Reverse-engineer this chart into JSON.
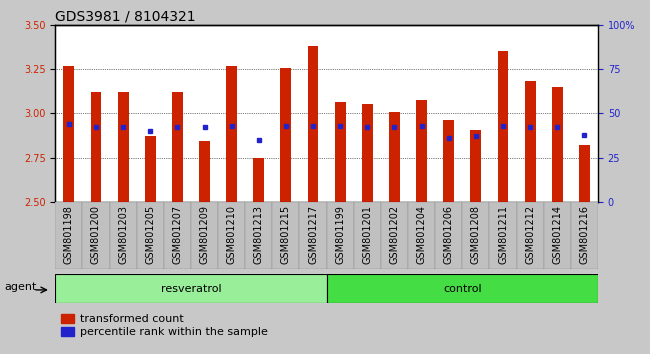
{
  "title": "GDS3981 / 8104321",
  "samples": [
    "GSM801198",
    "GSM801200",
    "GSM801203",
    "GSM801205",
    "GSM801207",
    "GSM801209",
    "GSM801210",
    "GSM801213",
    "GSM801215",
    "GSM801217",
    "GSM801199",
    "GSM801201",
    "GSM801202",
    "GSM801204",
    "GSM801206",
    "GSM801208",
    "GSM801211",
    "GSM801212",
    "GSM801214",
    "GSM801216"
  ],
  "transformed_count": [
    3.265,
    3.12,
    3.12,
    2.87,
    3.12,
    2.845,
    3.265,
    2.745,
    3.255,
    3.38,
    3.065,
    3.055,
    3.01,
    3.075,
    2.96,
    2.905,
    3.35,
    3.185,
    3.15,
    2.82
  ],
  "percentile_rank": [
    44,
    42,
    42,
    40,
    42,
    42,
    43,
    35,
    43,
    43,
    43,
    42,
    42,
    43,
    36,
    37,
    43,
    42,
    42,
    38
  ],
  "ylim_left": [
    2.5,
    3.5
  ],
  "ylim_right": [
    0,
    100
  ],
  "yticks_left": [
    2.5,
    2.75,
    3.0,
    3.25,
    3.5
  ],
  "yticks_right": [
    0,
    25,
    50,
    75,
    100
  ],
  "ytick_right_labels": [
    "0",
    "25",
    "50",
    "75",
    "100%"
  ],
  "bar_color": "#CC2200",
  "marker_color": "#2222CC",
  "fig_bg_color": "#C8C8C8",
  "plot_bg_color": "#FFFFFF",
  "ticklabel_bg": "#C0C0C0",
  "group_res_color": "#99EE99",
  "group_ctrl_color": "#44DD44",
  "title_fontsize": 10,
  "tick_fontsize": 7,
  "label_fontsize": 8,
  "bar_width": 0.4,
  "n_resveratrol": 10,
  "n_control": 10
}
